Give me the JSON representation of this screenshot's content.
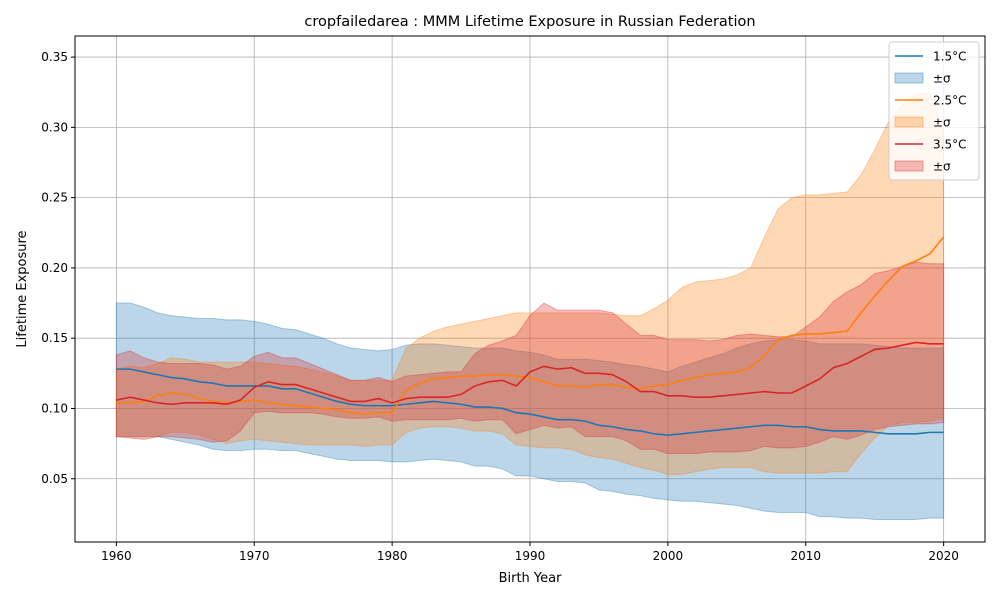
{
  "chart_data": {
    "type": "line",
    "title": "cropfailedarea : MMM Lifetime Exposure in Russian Federation",
    "xlabel": "Birth Year",
    "ylabel": "Lifetime Exposure",
    "xlim": [
      1957,
      2023
    ],
    "ylim": [
      0.005,
      0.365
    ],
    "xticks": [
      1960,
      1970,
      1980,
      1990,
      2000,
      2010,
      2020
    ],
    "yticks": [
      0.05,
      0.1,
      0.15,
      0.2,
      0.25,
      0.3,
      0.35
    ],
    "xtick_labels": [
      "1960",
      "1970",
      "1980",
      "1990",
      "2000",
      "2010",
      "2020"
    ],
    "ytick_labels": [
      "0.05",
      "0.10",
      "0.15",
      "0.20",
      "0.25",
      "0.30",
      "0.35"
    ],
    "grid": true,
    "legend_position": "top-right",
    "x": [
      1960,
      1961,
      1962,
      1963,
      1964,
      1965,
      1966,
      1967,
      1968,
      1969,
      1970,
      1971,
      1972,
      1973,
      1974,
      1975,
      1976,
      1977,
      1978,
      1979,
      1980,
      1981,
      1982,
      1983,
      1984,
      1985,
      1986,
      1987,
      1988,
      1989,
      1990,
      1991,
      1992,
      1993,
      1994,
      1995,
      1996,
      1997,
      1998,
      1999,
      2000,
      2001,
      2002,
      2003,
      2004,
      2005,
      2006,
      2007,
      2008,
      2009,
      2010,
      2011,
      2012,
      2013,
      2014,
      2015,
      2016,
      2017,
      2018,
      2019,
      2020
    ],
    "series": [
      {
        "name": "1.5°C",
        "band_label": "±σ",
        "color": "#1f77b4",
        "mean": [
          0.128,
          0.128,
          0.126,
          0.124,
          0.122,
          0.121,
          0.119,
          0.118,
          0.116,
          0.116,
          0.116,
          0.116,
          0.114,
          0.114,
          0.111,
          0.108,
          0.105,
          0.103,
          0.102,
          0.102,
          0.102,
          0.103,
          0.104,
          0.105,
          0.104,
          0.103,
          0.101,
          0.101,
          0.1,
          0.097,
          0.096,
          0.094,
          0.092,
          0.092,
          0.091,
          0.088,
          0.087,
          0.085,
          0.084,
          0.082,
          0.081,
          0.082,
          0.083,
          0.084,
          0.085,
          0.086,
          0.087,
          0.088,
          0.088,
          0.087,
          0.087,
          0.085,
          0.084,
          0.084,
          0.084,
          0.083,
          0.082,
          0.082,
          0.082,
          0.083,
          0.083
        ],
        "upper": [
          0.175,
          0.175,
          0.172,
          0.168,
          0.166,
          0.165,
          0.164,
          0.164,
          0.163,
          0.163,
          0.162,
          0.16,
          0.157,
          0.156,
          0.153,
          0.15,
          0.146,
          0.143,
          0.142,
          0.141,
          0.142,
          0.145,
          0.146,
          0.146,
          0.145,
          0.144,
          0.143,
          0.143,
          0.143,
          0.141,
          0.14,
          0.138,
          0.135,
          0.135,
          0.135,
          0.134,
          0.133,
          0.131,
          0.13,
          0.128,
          0.126,
          0.13,
          0.133,
          0.136,
          0.139,
          0.143,
          0.146,
          0.148,
          0.149,
          0.149,
          0.148,
          0.146,
          0.146,
          0.146,
          0.146,
          0.145,
          0.144,
          0.143,
          0.143,
          0.143,
          0.143
        ],
        "lower": [
          0.08,
          0.08,
          0.08,
          0.08,
          0.078,
          0.076,
          0.074,
          0.071,
          0.07,
          0.07,
          0.071,
          0.071,
          0.07,
          0.07,
          0.068,
          0.066,
          0.064,
          0.063,
          0.063,
          0.063,
          0.062,
          0.062,
          0.063,
          0.064,
          0.063,
          0.062,
          0.059,
          0.059,
          0.057,
          0.052,
          0.052,
          0.05,
          0.048,
          0.048,
          0.047,
          0.042,
          0.041,
          0.039,
          0.038,
          0.036,
          0.035,
          0.034,
          0.034,
          0.033,
          0.032,
          0.031,
          0.029,
          0.027,
          0.026,
          0.026,
          0.026,
          0.023,
          0.023,
          0.022,
          0.022,
          0.021,
          0.021,
          0.021,
          0.021,
          0.022,
          0.022
        ]
      },
      {
        "name": "2.5°C",
        "band_label": "±σ",
        "color": "#ff7f0e",
        "mean": [
          0.104,
          0.104,
          0.105,
          0.109,
          0.111,
          0.11,
          0.107,
          0.105,
          0.104,
          0.105,
          0.106,
          0.104,
          0.103,
          0.102,
          0.101,
          0.1,
          0.099,
          0.097,
          0.096,
          0.097,
          0.097,
          0.113,
          0.118,
          0.121,
          0.122,
          0.123,
          0.123,
          0.124,
          0.124,
          0.123,
          0.122,
          0.119,
          0.116,
          0.116,
          0.115,
          0.117,
          0.117,
          0.115,
          0.114,
          0.116,
          0.117,
          0.12,
          0.122,
          0.124,
          0.125,
          0.126,
          0.129,
          0.138,
          0.149,
          0.152,
          0.153,
          0.153,
          0.154,
          0.155,
          0.168,
          0.18,
          0.191,
          0.201,
          0.205,
          0.21,
          0.222
        ],
        "upper": [
          0.128,
          0.13,
          0.129,
          0.132,
          0.136,
          0.135,
          0.133,
          0.133,
          0.133,
          0.133,
          0.133,
          0.132,
          0.131,
          0.13,
          0.128,
          0.126,
          0.123,
          0.12,
          0.12,
          0.12,
          0.12,
          0.143,
          0.15,
          0.155,
          0.158,
          0.16,
          0.162,
          0.164,
          0.166,
          0.168,
          0.168,
          0.168,
          0.168,
          0.168,
          0.168,
          0.168,
          0.167,
          0.166,
          0.166,
          0.171,
          0.177,
          0.186,
          0.19,
          0.191,
          0.192,
          0.195,
          0.2,
          0.222,
          0.242,
          0.25,
          0.252,
          0.252,
          0.253,
          0.254,
          0.266,
          0.284,
          0.304,
          0.316,
          0.323,
          0.325,
          0.295
        ],
        "lower": [
          0.08,
          0.08,
          0.08,
          0.08,
          0.083,
          0.083,
          0.081,
          0.078,
          0.075,
          0.077,
          0.078,
          0.077,
          0.076,
          0.075,
          0.074,
          0.074,
          0.074,
          0.074,
          0.073,
          0.074,
          0.074,
          0.083,
          0.086,
          0.087,
          0.087,
          0.086,
          0.084,
          0.084,
          0.082,
          0.074,
          0.073,
          0.072,
          0.072,
          0.071,
          0.067,
          0.065,
          0.064,
          0.061,
          0.058,
          0.056,
          0.053,
          0.053,
          0.055,
          0.057,
          0.058,
          0.058,
          0.058,
          0.055,
          0.054,
          0.054,
          0.054,
          0.054,
          0.055,
          0.055,
          0.068,
          0.079,
          0.088,
          0.09,
          0.09,
          0.091,
          0.093
        ]
      },
      {
        "name": "3.5°C",
        "band_label": "±σ",
        "color": "#d62728",
        "mean": [
          0.106,
          0.108,
          0.106,
          0.104,
          0.103,
          0.104,
          0.104,
          0.104,
          0.103,
          0.106,
          0.115,
          0.119,
          0.117,
          0.117,
          0.114,
          0.111,
          0.108,
          0.105,
          0.105,
          0.107,
          0.104,
          0.107,
          0.108,
          0.108,
          0.108,
          0.11,
          0.116,
          0.119,
          0.12,
          0.116,
          0.126,
          0.13,
          0.128,
          0.129,
          0.125,
          0.125,
          0.124,
          0.119,
          0.112,
          0.112,
          0.109,
          0.109,
          0.108,
          0.108,
          0.109,
          0.11,
          0.111,
          0.112,
          0.111,
          0.111,
          0.116,
          0.121,
          0.129,
          0.132,
          0.137,
          0.142,
          0.143,
          0.145,
          0.147,
          0.146,
          0.146
        ],
        "upper": [
          0.138,
          0.141,
          0.136,
          0.133,
          0.132,
          0.132,
          0.132,
          0.131,
          0.128,
          0.13,
          0.137,
          0.14,
          0.136,
          0.136,
          0.132,
          0.128,
          0.124,
          0.12,
          0.12,
          0.122,
          0.119,
          0.123,
          0.124,
          0.125,
          0.126,
          0.126,
          0.139,
          0.145,
          0.148,
          0.152,
          0.166,
          0.175,
          0.17,
          0.17,
          0.17,
          0.17,
          0.168,
          0.16,
          0.152,
          0.152,
          0.149,
          0.149,
          0.149,
          0.148,
          0.149,
          0.152,
          0.153,
          0.152,
          0.151,
          0.151,
          0.158,
          0.165,
          0.176,
          0.183,
          0.188,
          0.196,
          0.198,
          0.201,
          0.204,
          0.203,
          0.203
        ],
        "lower": [
          0.08,
          0.079,
          0.078,
          0.08,
          0.08,
          0.079,
          0.078,
          0.076,
          0.077,
          0.084,
          0.097,
          0.098,
          0.097,
          0.097,
          0.097,
          0.096,
          0.094,
          0.093,
          0.093,
          0.094,
          0.091,
          0.092,
          0.092,
          0.092,
          0.092,
          0.093,
          0.091,
          0.092,
          0.092,
          0.082,
          0.085,
          0.088,
          0.086,
          0.087,
          0.08,
          0.08,
          0.08,
          0.077,
          0.071,
          0.071,
          0.068,
          0.068,
          0.068,
          0.069,
          0.069,
          0.069,
          0.07,
          0.073,
          0.072,
          0.072,
          0.073,
          0.076,
          0.08,
          0.078,
          0.081,
          0.085,
          0.087,
          0.088,
          0.089,
          0.089,
          0.09
        ]
      }
    ]
  }
}
